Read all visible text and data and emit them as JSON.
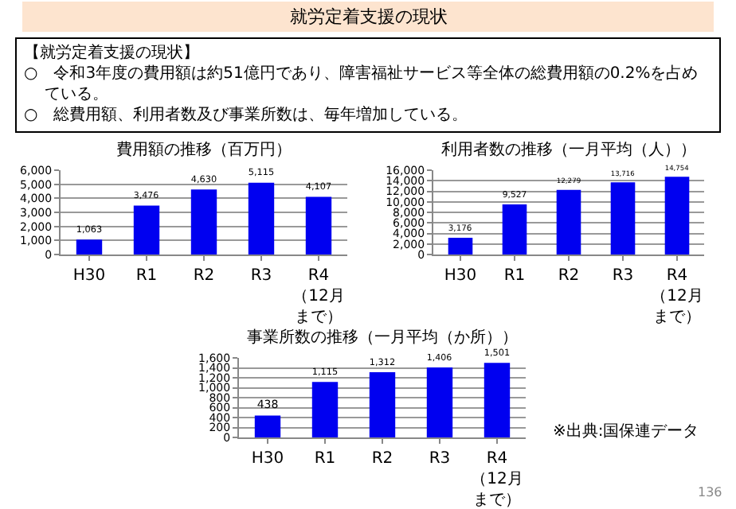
{
  "chart_data": [
    {
      "type": "other",
      "title": "就労定着支援の現状",
      "annotations": [
        "【就労定着支援の現状】",
        "○　令和3年度の費用額は約51億円であり、障害福祉サービス等全体の総費用額の0.2%を占めている。",
        "○　総費用額、利用者数及び事業所数は、毎年増加している。"
      ]
    },
    {
      "type": "bar",
      "title": "費用額の推移（百万円）",
      "categories": [
        "H30",
        "R1",
        "R2",
        "R3",
        "R4（12月まで）"
      ],
      "values": [
        1063,
        3476,
        4630,
        5115,
        4107
      ],
      "value_labels": [
        "1,063",
        "3,476",
        "4,630",
        "5,115",
        "4,107"
      ],
      "color": "#0000f0",
      "ylim": [
        0,
        6000
      ],
      "yticks": [
        {
          "value": 0,
          "label": "0"
        },
        {
          "value": 1000,
          "label": "1,000"
        },
        {
          "value": 2000,
          "label": "2,000"
        },
        {
          "value": 3000,
          "label": "3,000"
        },
        {
          "value": 4000,
          "label": "4,000"
        },
        {
          "value": 5000,
          "label": "5,000"
        },
        {
          "value": 6000,
          "label": "6,000"
        }
      ],
      "grid": "y"
    },
    {
      "type": "bar",
      "title": "利用者数の推移（一月平均（人））",
      "categories": [
        "H30",
        "R1",
        "R2",
        "R3",
        "R4（12月まで）"
      ],
      "values": [
        3176,
        9527,
        12279,
        13716,
        14754
      ],
      "value_labels": [
        "3,176",
        "9,527",
        "12,279",
        "13,716",
        "14,754"
      ],
      "color": "#0000f0",
      "ylim": [
        0,
        16000
      ],
      "yticks": [
        {
          "value": 0,
          "label": "0"
        },
        {
          "value": 2000,
          "label": "2,000"
        },
        {
          "value": 4000,
          "label": "4,000"
        },
        {
          "value": 6000,
          "label": "6,000"
        },
        {
          "value": 8000,
          "label": "8,000"
        },
        {
          "value": 10000,
          "label": "10,000"
        },
        {
          "value": 12000,
          "label": "12,000"
        },
        {
          "value": 14000,
          "label": "14,000"
        },
        {
          "value": 16000,
          "label": "16,000"
        }
      ],
      "grid": "y"
    },
    {
      "type": "bar",
      "title": "事業所数の推移（一月平均（か所））",
      "categories": [
        "H30",
        "R1",
        "R2",
        "R3",
        "R4（12月まで）"
      ],
      "values": [
        438,
        1115,
        1312,
        1406,
        1501
      ],
      "value_labels": [
        "438",
        "1,115",
        "1,312",
        "1,406",
        "1,501"
      ],
      "color": "#0000f0",
      "ylim": [
        0,
        1600
      ],
      "yticks": [
        {
          "value": 0,
          "label": "0"
        },
        {
          "value": 200,
          "label": "200"
        },
        {
          "value": 400,
          "label": "400"
        },
        {
          "value": 600,
          "label": "600"
        },
        {
          "value": 800,
          "label": "800"
        },
        {
          "value": 1000,
          "label": "1,000"
        },
        {
          "value": 1200,
          "label": "1,200"
        },
        {
          "value": 1400,
          "label": "1,400"
        },
        {
          "value": 1600,
          "label": "1,600"
        }
      ],
      "grid": "y",
      "annotations": [
        "※出典:国保連データ",
        "136"
      ]
    }
  ]
}
